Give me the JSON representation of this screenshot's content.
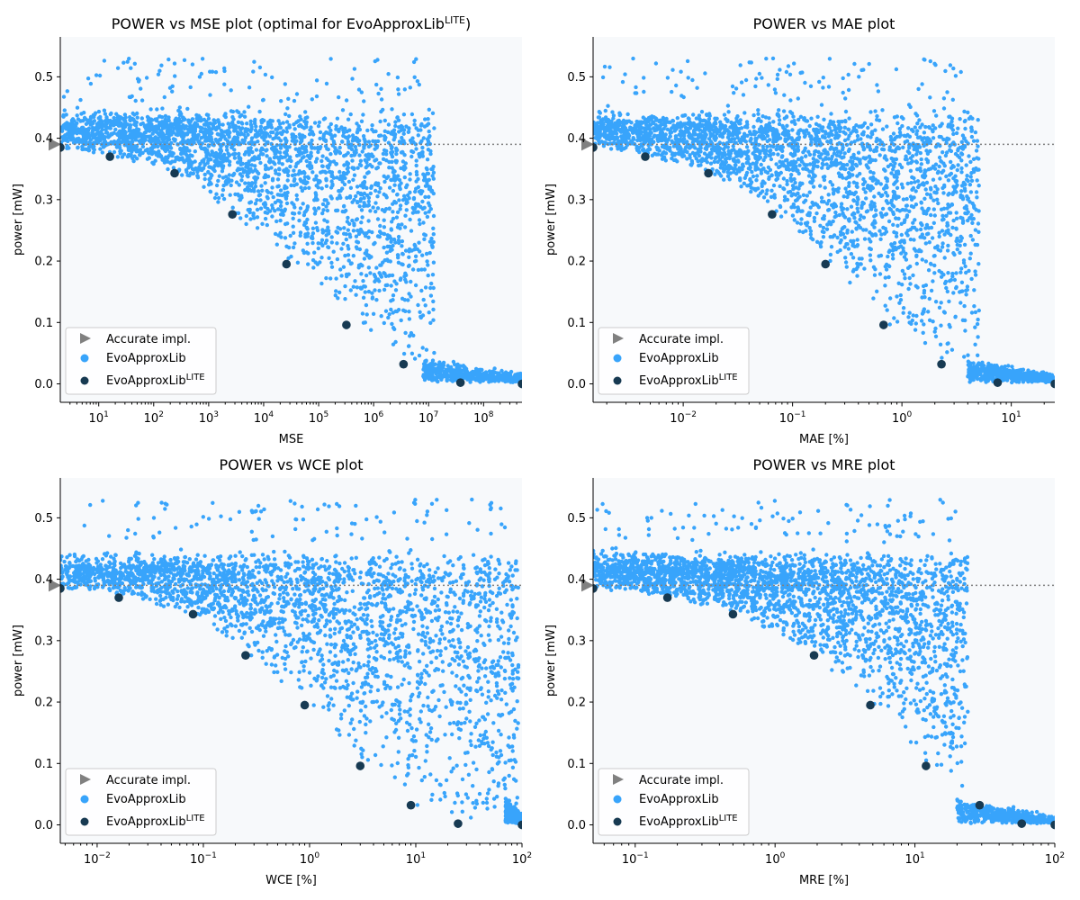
{
  "colors": {
    "cloud": "#38a4fb",
    "optimal": "#173a52",
    "accurate": "#808080",
    "axes_bg": "#f7f9fb",
    "reference_line": "#808080"
  },
  "legend": [
    "Accurate impl.",
    "EvoApproxLib",
    "EvoApproxLib",
    "LITE"
  ],
  "chart_data": [
    {
      "type": "scatter",
      "title": "POWER vs MSE plot (optimal for EvoApproxLib",
      "title_sup": "LITE",
      "title_end": ")",
      "xlabel": "MSE",
      "ylabel": "power [mW]",
      "xscale": "log",
      "xlim": [
        2,
        500000000
      ],
      "ylim": [
        -0.03,
        0.565
      ],
      "xticks": [
        10,
        100,
        1000,
        10000,
        100000,
        1000000,
        10000000,
        100000000
      ],
      "xtick_exp": [
        "1",
        "2",
        "3",
        "4",
        "5",
        "6",
        "7",
        "8"
      ],
      "yticks": [
        0.0,
        0.1,
        0.2,
        0.3,
        0.4,
        0.5
      ],
      "ytick_labels": [
        "0.0",
        "0.1",
        "0.2",
        "0.3",
        "0.4",
        "0.5"
      ],
      "reference_power": 0.39,
      "cloud_knee": 8000000,
      "optimal_series": {
        "name": "EvoApproxLib LITE",
        "x": [
          2,
          16,
          240,
          2700,
          26000,
          320000,
          3500000,
          38000000,
          500000000
        ],
        "y": [
          0.385,
          0.37,
          0.343,
          0.276,
          0.195,
          0.096,
          0.032,
          0.002,
          0.0
        ]
      }
    },
    {
      "type": "scatter",
      "title": "POWER vs MAE plot",
      "title_sup": "",
      "title_end": "",
      "xlabel": "MAE [%]",
      "ylabel": "power [mW]",
      "xscale": "log",
      "xlim": [
        0.0015,
        25
      ],
      "ylim": [
        -0.03,
        0.565
      ],
      "xticks": [
        0.01,
        0.1,
        1,
        10
      ],
      "xtick_exp": [
        "−2",
        "−1",
        "0",
        "1"
      ],
      "yticks": [
        0.0,
        0.1,
        0.2,
        0.3,
        0.4,
        0.5
      ],
      "ytick_labels": [
        "0.0",
        "0.1",
        "0.2",
        "0.3",
        "0.4",
        "0.5"
      ],
      "reference_power": 0.39,
      "cloud_knee": 4,
      "optimal_series": {
        "name": "EvoApproxLib LITE",
        "x": [
          0.0015,
          0.0045,
          0.017,
          0.065,
          0.2,
          0.68,
          2.3,
          7.5,
          25
        ],
        "y": [
          0.385,
          0.37,
          0.343,
          0.276,
          0.195,
          0.096,
          0.032,
          0.002,
          0.0
        ]
      }
    },
    {
      "type": "scatter",
      "title": "POWER vs WCE plot",
      "title_sup": "",
      "title_end": "",
      "xlabel": "WCE [%]",
      "ylabel": "power [mW]",
      "xscale": "log",
      "xlim": [
        0.0045,
        100
      ],
      "ylim": [
        -0.03,
        0.565
      ],
      "xticks": [
        0.01,
        0.1,
        1,
        10,
        100
      ],
      "xtick_exp": [
        "−2",
        "−1",
        "0",
        "1",
        "2"
      ],
      "yticks": [
        0.0,
        0.1,
        0.2,
        0.3,
        0.4,
        0.5
      ],
      "ytick_labels": [
        "0.0",
        "0.1",
        "0.2",
        "0.3",
        "0.4",
        "0.5"
      ],
      "reference_power": 0.39,
      "cloud_knee": 70,
      "optimal_series": {
        "name": "EvoApproxLib LITE",
        "x": [
          0.0045,
          0.016,
          0.08,
          0.25,
          0.9,
          3.0,
          9.0,
          25,
          100
        ],
        "y": [
          0.385,
          0.37,
          0.343,
          0.276,
          0.195,
          0.096,
          0.032,
          0.002,
          0.0
        ]
      }
    },
    {
      "type": "scatter",
      "title": "POWER vs MRE plot",
      "title_sup": "",
      "title_end": "",
      "xlabel": "MRE [%]",
      "ylabel": "power [mW]",
      "xscale": "log",
      "xlim": [
        0.05,
        100
      ],
      "ylim": [
        -0.03,
        0.565
      ],
      "xticks": [
        0.1,
        1,
        10,
        100
      ],
      "xtick_exp": [
        "−1",
        "0",
        "1",
        "2"
      ],
      "yticks": [
        0.0,
        0.1,
        0.2,
        0.3,
        0.4,
        0.5
      ],
      "ytick_labels": [
        "0.0",
        "0.1",
        "0.2",
        "0.3",
        "0.4",
        "0.5"
      ],
      "reference_power": 0.39,
      "cloud_knee": 20,
      "optimal_series": {
        "name": "EvoApproxLib LITE",
        "x": [
          0.05,
          0.17,
          0.5,
          1.9,
          4.8,
          12,
          29,
          58,
          100
        ],
        "y": [
          0.385,
          0.37,
          0.343,
          0.276,
          0.195,
          0.096,
          0.032,
          0.002,
          0.0
        ]
      }
    }
  ]
}
